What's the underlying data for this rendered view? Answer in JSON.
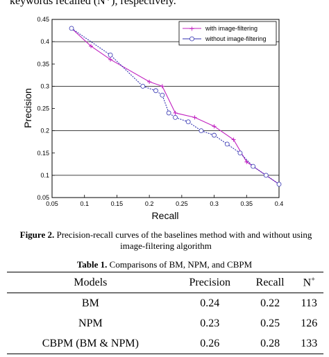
{
  "fragment": "keywords recalled (N⁺), respectively.",
  "chart_data": {
    "type": "line",
    "xlabel": "Recall",
    "ylabel": "Precision",
    "xlim": [
      0.05,
      0.4
    ],
    "ylim": [
      0.05,
      0.45
    ],
    "xticks": [
      "0.05",
      "0.1",
      "0.15",
      "0.2",
      "0.25",
      "0.3",
      "0.35",
      "0.4"
    ],
    "yticks": [
      "0.05",
      "0.1",
      "0.15",
      "0.2",
      "0.25",
      "0.3",
      "0.35",
      "0.4",
      "0.45"
    ],
    "grid": "horizontal",
    "legend_position": "top-right",
    "series": [
      {
        "name": "with image-filtering",
        "color": "#c020c0",
        "marker": "plus",
        "x": [
          0.08,
          0.11,
          0.14,
          0.2,
          0.22,
          0.24,
          0.27,
          0.3,
          0.33,
          0.35,
          0.38,
          0.4
        ],
        "y": [
          0.43,
          0.39,
          0.36,
          0.31,
          0.3,
          0.24,
          0.23,
          0.21,
          0.18,
          0.13,
          0.1,
          0.08
        ]
      },
      {
        "name": "without image-filtering",
        "color": "#3030b0",
        "marker": "circle",
        "x": [
          0.08,
          0.14,
          0.19,
          0.21,
          0.22,
          0.23,
          0.24,
          0.26,
          0.28,
          0.3,
          0.32,
          0.34,
          0.36,
          0.38,
          0.4
        ],
        "y": [
          0.43,
          0.37,
          0.3,
          0.29,
          0.28,
          0.24,
          0.23,
          0.22,
          0.2,
          0.19,
          0.17,
          0.15,
          0.12,
          0.1,
          0.08
        ]
      }
    ]
  },
  "figure_caption": {
    "label": "Figure 2.",
    "text": "Precision-recall curves of the baselines method with and without using image-filtering algorithm"
  },
  "table_caption": {
    "label": "Table 1.",
    "text": "Comparisons of BM, NPM, and CBPM"
  },
  "table": {
    "headers": [
      "Models",
      "Precision",
      "Recall",
      "N"
    ],
    "n_sup": "+",
    "rows": [
      [
        "BM",
        "0.24",
        "0.22",
        "113"
      ],
      [
        "NPM",
        "0.23",
        "0.25",
        "126"
      ],
      [
        "CBPM (BM & NPM)",
        "0.26",
        "0.28",
        "133"
      ]
    ]
  }
}
